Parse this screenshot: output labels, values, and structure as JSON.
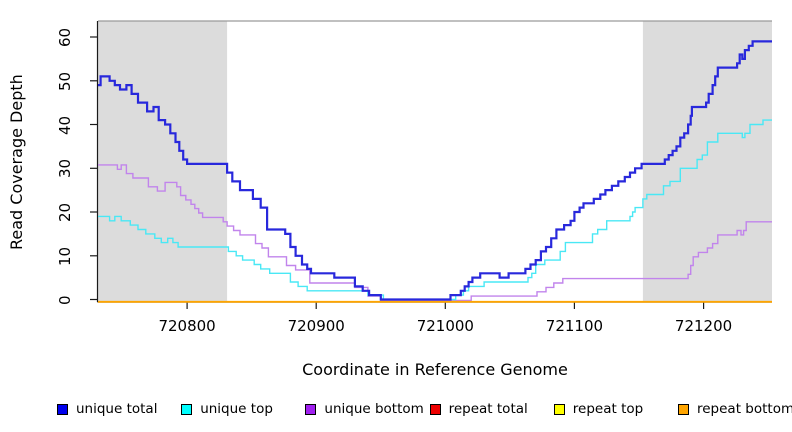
{
  "figure": {
    "x_axis_title": "Coordinate in Reference Genome",
    "y_axis_title": "Read Coverage Depth"
  },
  "chart_data": {
    "type": "line",
    "step": true,
    "title": "",
    "xlabel": "Coordinate in Reference Genome",
    "ylabel": "Read Coverage Depth",
    "xlim": [
      720731,
      721253
    ],
    "ylim": [
      0,
      63
    ],
    "x_ticks": [
      720800,
      720900,
      721000,
      721100,
      721200
    ],
    "y_ticks": [
      0,
      10,
      20,
      30,
      40,
      50,
      60
    ],
    "grid": false,
    "legend_position": "bottom",
    "shade_color": "#dcdcdc",
    "shaded_regions": [
      {
        "x0": 720731,
        "x1": 720831
      },
      {
        "x0": 721153,
        "x1": 721253
      }
    ],
    "series": [
      {
        "name": "repeat total",
        "legend_index": 3,
        "color": "#dd0000",
        "legend_fill": "#ee0000",
        "width": 1.4,
        "steps": [
          [
            720731,
            0
          ]
        ]
      },
      {
        "name": "repeat top",
        "legend_index": 4,
        "color": "#f5e800",
        "legend_fill": "#ffff00",
        "width": 1.4,
        "steps": [
          [
            720731,
            0
          ]
        ]
      },
      {
        "name": "unique bottom",
        "legend_index": 2,
        "color": "#c184ec",
        "legend_fill": "#a020f0",
        "width": 1.4,
        "steps": [
          [
            720731,
            31
          ],
          [
            720746,
            30
          ],
          [
            720749,
            31
          ],
          [
            720753,
            29
          ],
          [
            720758,
            28
          ],
          [
            720770,
            26
          ],
          [
            720777,
            25
          ],
          [
            720783,
            27
          ],
          [
            720792,
            26
          ],
          [
            720795,
            24
          ],
          [
            720799,
            23
          ],
          [
            720803,
            22
          ],
          [
            720806,
            21
          ],
          [
            720809,
            20
          ],
          [
            720812,
            19
          ],
          [
            720828,
            18
          ],
          [
            720831,
            17
          ],
          [
            720836,
            16
          ],
          [
            720841,
            15
          ],
          [
            720853,
            13
          ],
          [
            720858,
            12
          ],
          [
            720863,
            10
          ],
          [
            720877,
            8
          ],
          [
            720884,
            7
          ],
          [
            720895,
            4
          ],
          [
            720930,
            3
          ],
          [
            720940,
            1
          ],
          [
            720950,
            0
          ],
          [
            721020,
            1
          ],
          [
            721071,
            2
          ],
          [
            721078,
            3
          ],
          [
            721084,
            4
          ],
          [
            721091,
            5
          ],
          [
            721188,
            6
          ],
          [
            721190,
            8
          ],
          [
            721192,
            10
          ],
          [
            721196,
            11
          ],
          [
            721203,
            12
          ],
          [
            721207,
            13
          ],
          [
            721211,
            15
          ],
          [
            721226,
            16
          ],
          [
            721229,
            15
          ],
          [
            721231,
            16
          ],
          [
            721233,
            18
          ]
        ]
      },
      {
        "name": "unique top",
        "legend_index": 1,
        "color": "#49e8f5",
        "legend_fill": "#00ffff",
        "width": 1.4,
        "steps": [
          [
            720731,
            19
          ],
          [
            720740,
            18
          ],
          [
            720744,
            19
          ],
          [
            720749,
            18
          ],
          [
            720756,
            17
          ],
          [
            720762,
            16
          ],
          [
            720768,
            15
          ],
          [
            720775,
            14
          ],
          [
            720780,
            13
          ],
          [
            720785,
            14
          ],
          [
            720789,
            13
          ],
          [
            720793,
            12
          ],
          [
            720832,
            11
          ],
          [
            720838,
            10
          ],
          [
            720843,
            9
          ],
          [
            720852,
            8
          ],
          [
            720857,
            7
          ],
          [
            720864,
            6
          ],
          [
            720880,
            4
          ],
          [
            720886,
            3
          ],
          [
            720893,
            2
          ],
          [
            720940,
            1
          ],
          [
            720952,
            0
          ],
          [
            721008,
            1
          ],
          [
            721014,
            2
          ],
          [
            721018,
            3
          ],
          [
            721030,
            4
          ],
          [
            721064,
            5
          ],
          [
            721067,
            6
          ],
          [
            721070,
            8
          ],
          [
            721077,
            9
          ],
          [
            721089,
            11
          ],
          [
            721093,
            13
          ],
          [
            721114,
            15
          ],
          [
            721118,
            16
          ],
          [
            721125,
            18
          ],
          [
            721143,
            19
          ],
          [
            721145,
            20
          ],
          [
            721147,
            21
          ],
          [
            721153,
            23
          ],
          [
            721156,
            24
          ],
          [
            721169,
            26
          ],
          [
            721174,
            27
          ],
          [
            721182,
            30
          ],
          [
            721195,
            32
          ],
          [
            721199,
            33
          ],
          [
            721203,
            36
          ],
          [
            721211,
            38
          ],
          [
            721230,
            37
          ],
          [
            721232,
            38
          ],
          [
            721236,
            40
          ],
          [
            721246,
            41
          ]
        ]
      },
      {
        "name": "repeat bottom",
        "legend_index": 5,
        "color": "#ffa500",
        "legend_fill": "#ffa500",
        "width": 1.8,
        "steps": [
          [
            720731,
            0
          ]
        ]
      },
      {
        "name": "unique total",
        "legend_index": 0,
        "color": "#2828dc",
        "legend_fill": "#0000ee",
        "width": 2.2,
        "steps": [
          [
            720731,
            49
          ],
          [
            720733,
            51
          ],
          [
            720740,
            50
          ],
          [
            720744,
            49
          ],
          [
            720748,
            48
          ],
          [
            720753,
            49
          ],
          [
            720757,
            47
          ],
          [
            720762,
            45
          ],
          [
            720769,
            43
          ],
          [
            720774,
            44
          ],
          [
            720778,
            41
          ],
          [
            720783,
            40
          ],
          [
            720787,
            38
          ],
          [
            720791,
            36
          ],
          [
            720794,
            34
          ],
          [
            720797,
            32
          ],
          [
            720800,
            31
          ],
          [
            720831,
            29
          ],
          [
            720835,
            27
          ],
          [
            720841,
            25
          ],
          [
            720851,
            23
          ],
          [
            720857,
            21
          ],
          [
            720862,
            16
          ],
          [
            720876,
            15
          ],
          [
            720880,
            12
          ],
          [
            720884,
            10
          ],
          [
            720889,
            8
          ],
          [
            720893,
            7
          ],
          [
            720896,
            6
          ],
          [
            720914,
            5
          ],
          [
            720930,
            3
          ],
          [
            720936,
            2
          ],
          [
            720941,
            1
          ],
          [
            720950,
            0
          ],
          [
            721004,
            1
          ],
          [
            721012,
            2
          ],
          [
            721015,
            3
          ],
          [
            721018,
            4
          ],
          [
            721021,
            5
          ],
          [
            721027,
            6
          ],
          [
            721042,
            5
          ],
          [
            721049,
            6
          ],
          [
            721062,
            7
          ],
          [
            721066,
            8
          ],
          [
            721070,
            9
          ],
          [
            721074,
            11
          ],
          [
            721078,
            12
          ],
          [
            721082,
            14
          ],
          [
            721086,
            16
          ],
          [
            721092,
            17
          ],
          [
            721097,
            18
          ],
          [
            721100,
            20
          ],
          [
            721104,
            21
          ],
          [
            721107,
            22
          ],
          [
            721115,
            23
          ],
          [
            721120,
            24
          ],
          [
            721124,
            25
          ],
          [
            721129,
            26
          ],
          [
            721134,
            27
          ],
          [
            721139,
            28
          ],
          [
            721143,
            29
          ],
          [
            721147,
            30
          ],
          [
            721152,
            31
          ],
          [
            721170,
            32
          ],
          [
            721173,
            33
          ],
          [
            721176,
            34
          ],
          [
            721179,
            35
          ],
          [
            721182,
            37
          ],
          [
            721185,
            38
          ],
          [
            721188,
            40
          ],
          [
            721190,
            42
          ],
          [
            721191,
            44
          ],
          [
            721202,
            45
          ],
          [
            721204,
            47
          ],
          [
            721207,
            49
          ],
          [
            721209,
            51
          ],
          [
            721211,
            53
          ],
          [
            721226,
            54
          ],
          [
            721228,
            56
          ],
          [
            721230,
            55
          ],
          [
            721232,
            57
          ],
          [
            721235,
            58
          ],
          [
            721238,
            59
          ]
        ]
      }
    ]
  }
}
